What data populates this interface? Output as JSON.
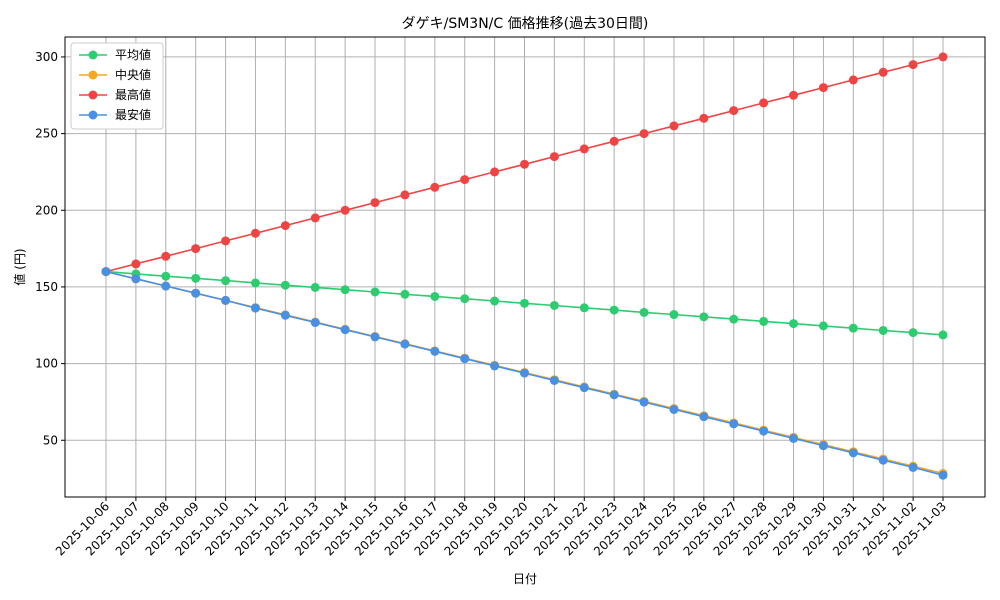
{
  "chart_data": {
    "type": "line",
    "title": "ダゲキ/SM3N/C 価格推移(過去30日間)",
    "xlabel": "日付",
    "ylabel": "値 (円)",
    "categories": [
      "2025-10-06",
      "2025-10-07",
      "2025-10-08",
      "2025-10-09",
      "2025-10-10",
      "2025-10-11",
      "2025-10-12",
      "2025-10-13",
      "2025-10-14",
      "2025-10-15",
      "2025-10-16",
      "2025-10-17",
      "2025-10-18",
      "2025-10-19",
      "2025-10-20",
      "2025-10-21",
      "2025-10-22",
      "2025-10-23",
      "2025-10-24",
      "2025-10-25",
      "2025-10-26",
      "2025-10-27",
      "2025-10-28",
      "2025-10-29",
      "2025-10-30",
      "2025-10-31",
      "2025-11-01",
      "2025-11-02",
      "2025-11-03"
    ],
    "ylim": [
      13,
      313
    ],
    "yticks": [
      50,
      100,
      150,
      200,
      250,
      300
    ],
    "grid": true,
    "legend_position": "top-left",
    "series": [
      {
        "name": "平均値",
        "color": "#2ecc71",
        "values": [
          160,
          158.5,
          157,
          155.6,
          154.1,
          152.6,
          151.1,
          149.7,
          148.2,
          146.7,
          145.2,
          143.8,
          142.3,
          140.8,
          139.3,
          137.9,
          136.4,
          134.9,
          133.4,
          132,
          130.5,
          129,
          127.5,
          126.1,
          124.6,
          123.1,
          121.6,
          120.2,
          118.7
        ]
      },
      {
        "name": "中央値",
        "color": "#f5a623",
        "values": [
          160,
          155.3,
          150.6,
          145.9,
          141.2,
          136.5,
          131.8,
          127.1,
          122.4,
          117.7,
          113,
          108.3,
          103.6,
          98.9,
          94.2,
          89.5,
          84.8,
          80.1,
          75.4,
          70.7,
          66,
          61.3,
          56.6,
          51.9,
          47.2,
          42.5,
          37.8,
          33.1,
          28.4
        ]
      },
      {
        "name": "最高値",
        "color": "#ef4444",
        "values": [
          160,
          165,
          170,
          175,
          180,
          185,
          190,
          195,
          200,
          205,
          210,
          215,
          220,
          225,
          230,
          235,
          240,
          245,
          250,
          255,
          260,
          265,
          270,
          275,
          280,
          285,
          290,
          295,
          300
        ]
      },
      {
        "name": "最安値",
        "color": "#4a90e2",
        "values": [
          160,
          155.3,
          150.6,
          145.9,
          141.2,
          136.2,
          131.5,
          126.8,
          122.1,
          117.4,
          112.7,
          108,
          103.2,
          98.5,
          93.8,
          89,
          84.3,
          79.6,
          74.9,
          70.1,
          65.4,
          60.7,
          56,
          51.2,
          46.5,
          41.8,
          37,
          32.3,
          27.2
        ]
      }
    ]
  }
}
